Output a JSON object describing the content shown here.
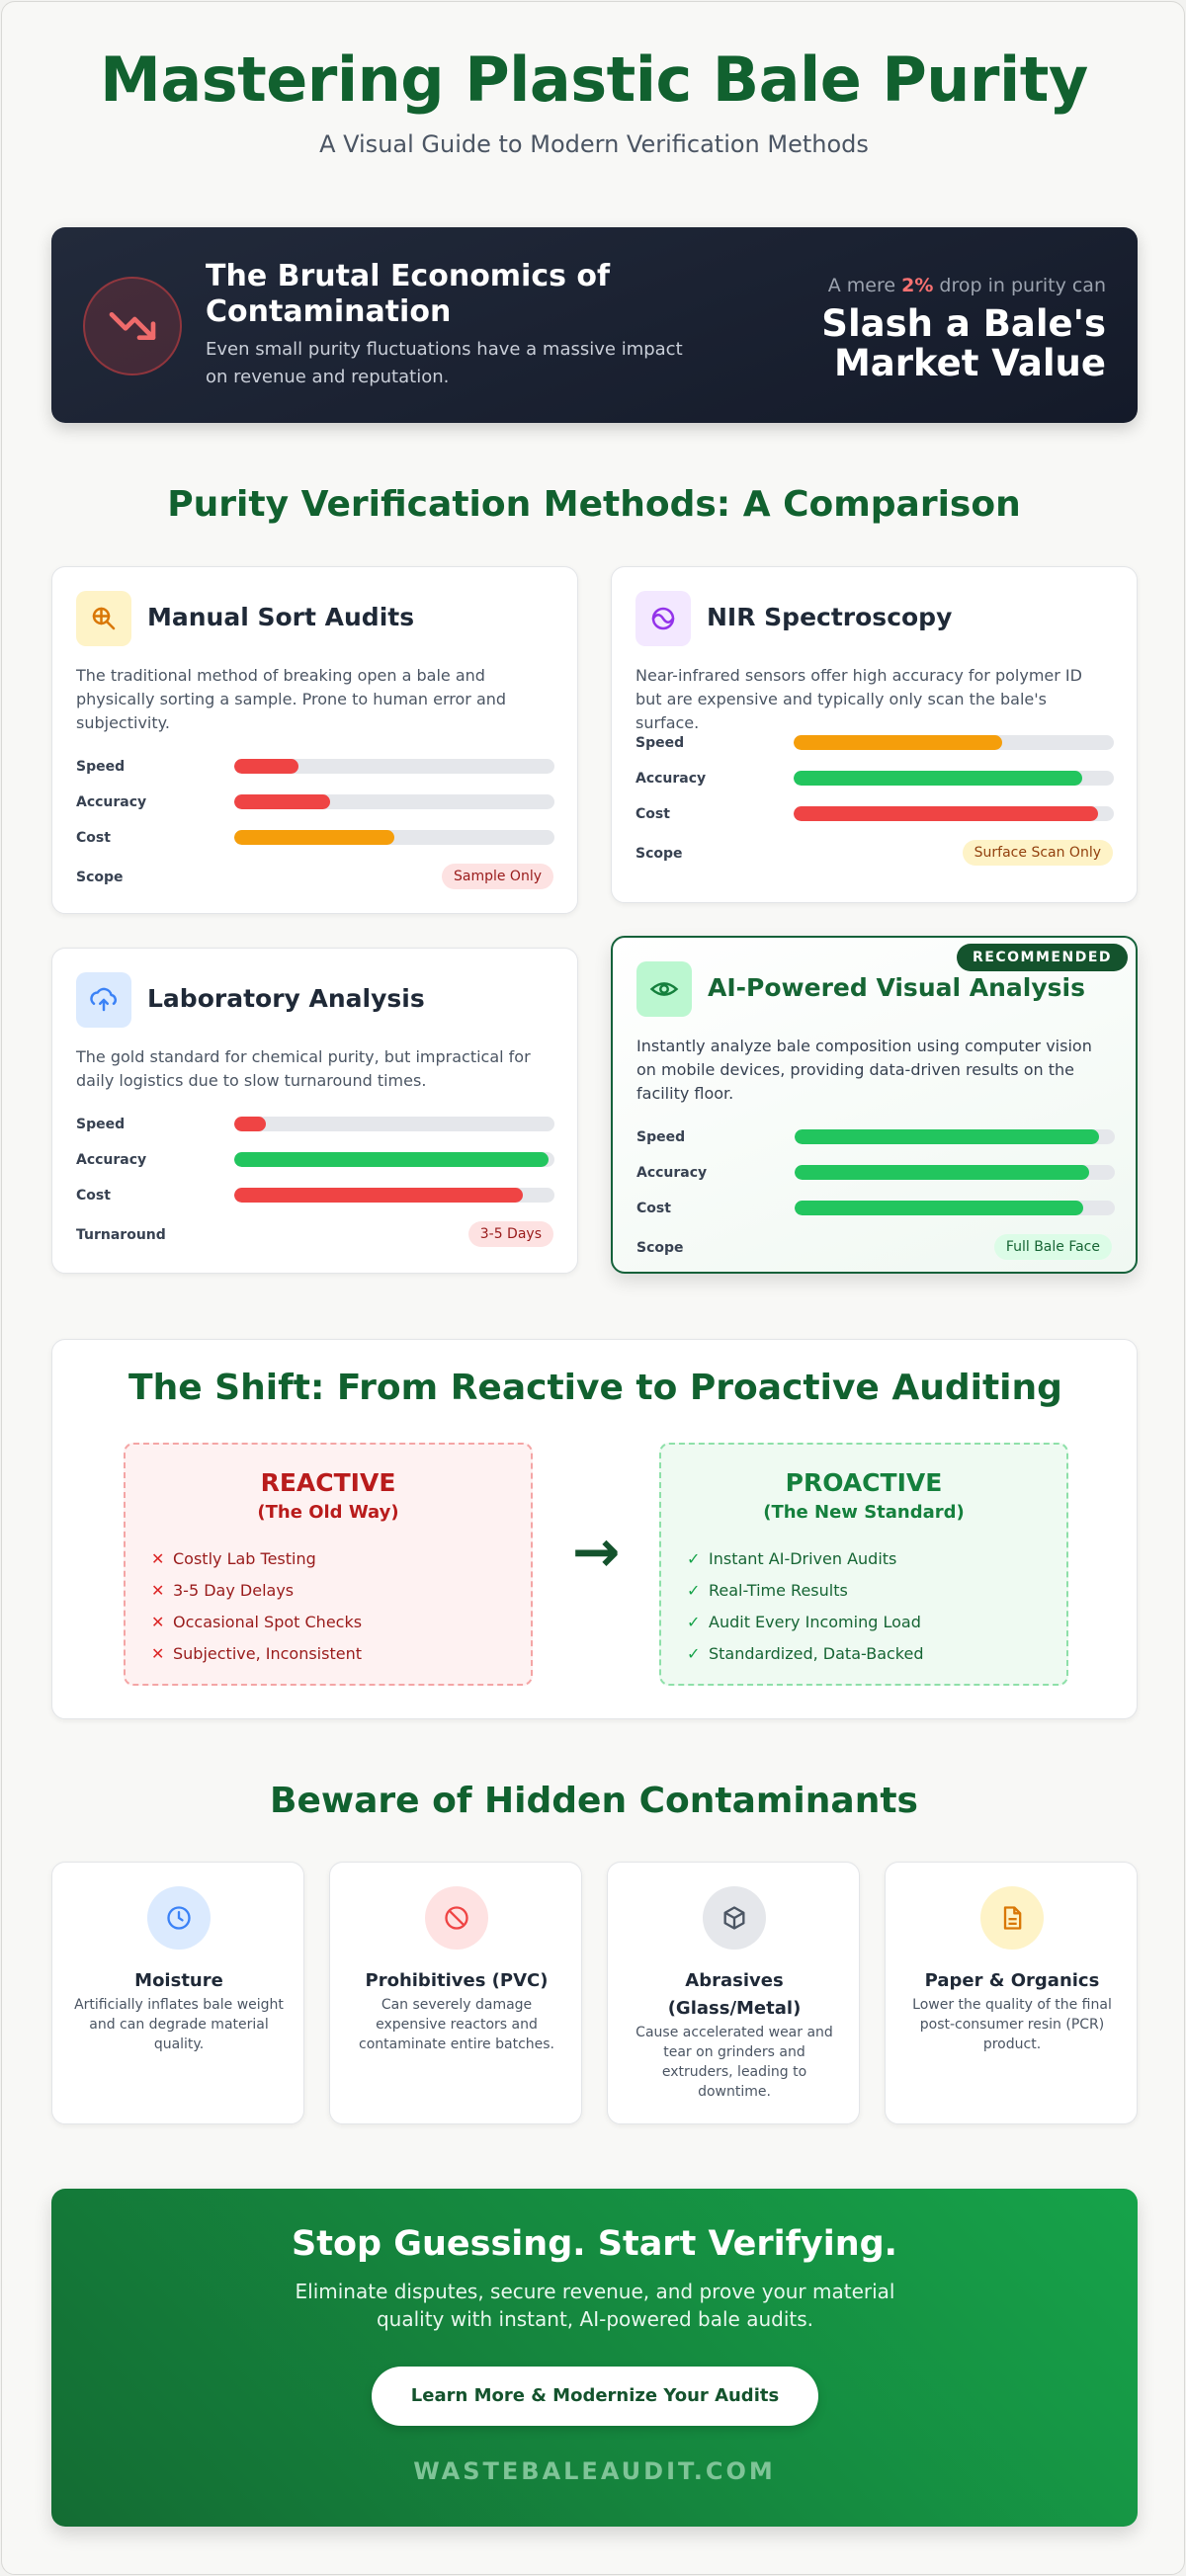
{
  "header": {
    "title": "Mastering Plastic Bale Purity",
    "subtitle": "A Visual Guide to Modern Verification Methods"
  },
  "economics": {
    "icon": "trending-down-icon",
    "title": "The Brutal Economics of Contamination",
    "description": "Even small purity fluctuations have a massive impact on revenue and reputation.",
    "pre_text_before": "A mere ",
    "pre_highlight": "2%",
    "pre_text_after": " drop in purity can",
    "big_text": "Slash a Bale's Market Value"
  },
  "comparison": {
    "title": "Purity Verification Methods: A Comparison",
    "metric_labels": {
      "speed": "Speed",
      "accuracy": "Accuracy",
      "cost": "Cost"
    },
    "methods": [
      {
        "icon": "magnifier-icon",
        "title": "Manual Sort Audits",
        "description": "The traditional method of breaking open a bale and physically sorting a sample. Prone to human error and subjectivity.",
        "speed": 0.2,
        "accuracy": 0.3,
        "cost": 0.5,
        "speed_color": "#ef4444",
        "accuracy_color": "#ef4444",
        "cost_color": "#f59e0b",
        "scope_label": "Scope",
        "scope_value": "Sample Only"
      },
      {
        "icon": "spectrum-icon",
        "title": "NIR Spectroscopy",
        "description": "Near-infrared sensors offer high accuracy for polymer ID but are expensive and typically only scan the bale's surface.",
        "speed": 0.65,
        "accuracy": 0.9,
        "cost": 0.95,
        "speed_color": "#f59e0b",
        "accuracy_color": "#22c55e",
        "cost_color": "#ef4444",
        "scope_label": "Scope",
        "scope_value": "Surface Scan Only"
      },
      {
        "icon": "flask-icon",
        "title": "Laboratory Analysis",
        "description": "The gold standard for chemical purity, but impractical for daily logistics due to slow turnaround times.",
        "speed": 0.1,
        "accuracy": 0.98,
        "cost": 0.9,
        "speed_color": "#ef4444",
        "accuracy_color": "#22c55e",
        "cost_color": "#ef4444",
        "scope_label": "Turnaround",
        "scope_value": "3-5 Days"
      },
      {
        "icon": "eye-icon",
        "badge": "RECOMMENDED",
        "title": "AI-Powered Visual Analysis",
        "description": "Instantly analyze bale composition using computer vision on mobile devices, providing data-driven results on the facility floor.",
        "speed": 0.95,
        "accuracy": 0.92,
        "cost": 0.9,
        "speed_color": "#22c55e",
        "accuracy_color": "#22c55e",
        "cost_color": "#22c55e",
        "scope_label": "Scope",
        "scope_value": "Full Bale Face"
      }
    ]
  },
  "shift": {
    "title": "The Shift: From Reactive to Proactive Auditing",
    "reactive": {
      "heading": "REACTIVE",
      "subheading": "(The Old Way)",
      "mark": "✕",
      "items": [
        "Costly Lab Testing",
        "3-5 Day Delays",
        "Occasional Spot Checks",
        "Subjective, Inconsistent"
      ]
    },
    "arrow": "→",
    "proactive": {
      "heading": "PROACTIVE",
      "subheading": "(The New Standard)",
      "mark": "✓",
      "items": [
        "Instant AI-Driven Audits",
        "Real-Time Results",
        "Audit Every Incoming Load",
        "Standardized, Data-Backed"
      ]
    }
  },
  "contaminants": {
    "title": "Beware of Hidden Contaminants",
    "items": [
      {
        "icon": "clock-icon",
        "title": "Moisture",
        "description": "Artificially inflates bale weight and can degrade material quality."
      },
      {
        "icon": "prohibited-icon",
        "title": "Prohibitives (PVC)",
        "description": "Can severely damage expensive reactors and contaminate entire batches."
      },
      {
        "icon": "cube-icon",
        "title": "Abrasives (Glass/Metal)",
        "description": "Cause accelerated wear and tear on grinders and extruders, leading to downtime."
      },
      {
        "icon": "document-icon",
        "title": "Paper & Organics",
        "description": "Lower the quality of the final post-consumer resin (PCR) product."
      }
    ]
  },
  "cta": {
    "title": "Stop Guessing. Start Verifying.",
    "description": "Eliminate disputes, secure revenue, and prove your material quality with instant, AI-powered bale audits.",
    "button_label": "Learn More & Modernize Your Audits",
    "url": "WASTEBALEAUDIT.COM"
  },
  "colors": {
    "brand_green": "#11612f",
    "red": "#ef4444",
    "amber": "#f59e0b",
    "green": "#22c55e"
  }
}
